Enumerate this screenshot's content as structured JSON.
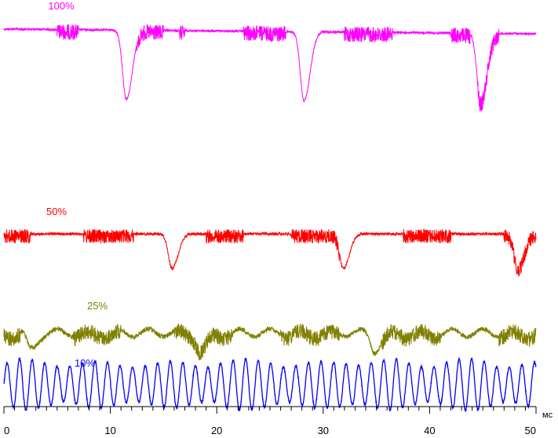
{
  "chart_data": {
    "type": "line",
    "title": "",
    "xlabel": "",
    "ylabel": "",
    "x_unit": "мс",
    "xlim": [
      0,
      50
    ],
    "x_ticks": [
      0,
      10,
      20,
      30,
      40,
      50
    ],
    "grid": false,
    "series": [
      {
        "name": "100%",
        "color": "#ff00ff",
        "baseline": 1.0,
        "ripple_bursts_ms": [
          [
            5.0,
            7.0
          ],
          [
            12.5,
            15.0
          ],
          [
            16.5,
            17.0
          ],
          [
            22.5,
            23.8
          ],
          [
            24.0,
            26.5
          ],
          [
            32.0,
            36.5
          ],
          [
            42.0,
            43.8
          ],
          [
            44.5,
            46.5
          ]
        ],
        "dips_ms": [
          11.5,
          28.2,
          44.8
        ],
        "dip_depth": 1.0
      },
      {
        "name": "50%",
        "color": "#ff0000",
        "baseline": 0.5,
        "ripple_bursts_ms": [
          [
            0.0,
            2.5
          ],
          [
            7.5,
            11.5
          ],
          [
            11.5,
            12.2
          ],
          [
            19.0,
            22.5
          ],
          [
            27.0,
            31.5
          ],
          [
            37.5,
            42.0
          ],
          [
            47.0,
            50.0
          ]
        ],
        "dips_ms": [
          15.8,
          31.9,
          48.3
        ],
        "dip_depth": 0.55
      },
      {
        "name": "25%",
        "color": "#808000",
        "baseline": 0.25,
        "ripple_bursts_ms": [
          [
            0.0,
            1.5
          ],
          [
            6.5,
            11.0
          ],
          [
            16.0,
            21.5
          ],
          [
            26.0,
            31.5
          ],
          [
            35.5,
            41.0
          ],
          [
            46.5,
            50.0
          ]
        ],
        "dips_ms": [
          2.5,
          18.5,
          34.8
        ],
        "dip_depth": 0.25
      },
      {
        "name": "10%",
        "color": "#0000ff",
        "baseline": 0.1,
        "oscillation_period_ms": 1.18,
        "oscillation_amplitude": 0.35
      }
    ]
  }
}
